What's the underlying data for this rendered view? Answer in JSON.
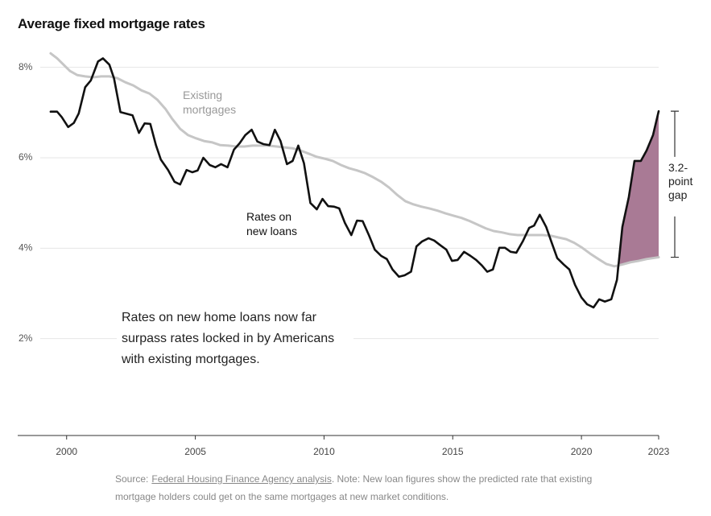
{
  "chart_data": {
    "type": "line",
    "title": "Average fixed mortgage rates",
    "xlim": [
      1998.1,
      2023
    ],
    "xticks": [
      2000,
      2005,
      2010,
      2015,
      2020,
      2023
    ],
    "ylim": [
      0,
      8.4
    ],
    "yticks": [
      {
        "value": 2,
        "label": "2%"
      },
      {
        "value": 4,
        "label": "4%"
      },
      {
        "value": 6,
        "label": "6%"
      },
      {
        "value": 8,
        "label": "8%"
      }
    ],
    "grid": true,
    "gap_fill_color": "#a97a95",
    "series": [
      {
        "name": "Existing mortgages",
        "color": "#c6c6c6",
        "x": [
          1999.38,
          1999.63,
          1999.88,
          2000.13,
          2000.41,
          2000.72,
          2001.03,
          2001.34,
          2001.66,
          2001.97,
          2002.28,
          2002.59,
          2002.91,
          2003.22,
          2003.53,
          2003.84,
          2004.09,
          2004.41,
          2004.72,
          2005.03,
          2005.34,
          2005.66,
          2005.97,
          2006.28,
          2006.59,
          2006.91,
          2007.22,
          2007.53,
          2007.84,
          2008.16,
          2008.47,
          2008.78,
          2009.09,
          2009.41,
          2009.72,
          2010.03,
          2010.34,
          2010.66,
          2010.97,
          2011.28,
          2011.59,
          2011.91,
          2012.22,
          2012.53,
          2012.84,
          2013.16,
          2013.47,
          2013.78,
          2014.09,
          2014.41,
          2014.72,
          2015.03,
          2015.34,
          2015.66,
          2015.97,
          2016.28,
          2016.59,
          2016.91,
          2017.22,
          2017.53,
          2017.84,
          2018.16,
          2018.47,
          2018.78,
          2019.09,
          2019.41,
          2019.72,
          2020.03,
          2020.34,
          2020.66,
          2020.97,
          2021.28,
          2021.59,
          2021.91,
          2022.22,
          2022.53,
          2023.0
        ],
        "values": [
          8.31,
          8.2,
          8.06,
          7.92,
          7.83,
          7.8,
          7.78,
          7.8,
          7.8,
          7.76,
          7.67,
          7.6,
          7.49,
          7.42,
          7.28,
          7.08,
          6.87,
          6.64,
          6.5,
          6.43,
          6.37,
          6.34,
          6.28,
          6.27,
          6.25,
          6.25,
          6.27,
          6.27,
          6.27,
          6.25,
          6.23,
          6.21,
          6.16,
          6.09,
          6.02,
          5.98,
          5.93,
          5.84,
          5.77,
          5.72,
          5.66,
          5.57,
          5.47,
          5.34,
          5.18,
          5.04,
          4.97,
          4.92,
          4.88,
          4.83,
          4.77,
          4.72,
          4.67,
          4.6,
          4.52,
          4.44,
          4.38,
          4.35,
          4.31,
          4.29,
          4.29,
          4.29,
          4.29,
          4.28,
          4.24,
          4.2,
          4.12,
          4.01,
          3.88,
          3.76,
          3.65,
          3.6,
          3.64,
          3.69,
          3.72,
          3.76,
          3.8
        ]
      },
      {
        "name": "Rates on new loans",
        "color": "#111111",
        "x": [
          1999.38,
          1999.63,
          1999.81,
          2000.06,
          2000.28,
          2000.47,
          2000.72,
          2000.94,
          2001.22,
          2001.41,
          2001.66,
          2001.84,
          2002.09,
          2002.56,
          2002.81,
          2003.03,
          2003.25,
          2003.47,
          2003.66,
          2003.94,
          2004.19,
          2004.41,
          2004.66,
          2004.88,
          2005.09,
          2005.31,
          2005.56,
          2005.78,
          2006.0,
          2006.25,
          2006.5,
          2006.72,
          2006.94,
          2007.19,
          2007.41,
          2007.66,
          2007.88,
          2008.09,
          2008.31,
          2008.56,
          2008.78,
          2009.0,
          2009.22,
          2009.47,
          2009.72,
          2009.94,
          2010.16,
          2010.38,
          2010.59,
          2010.81,
          2011.06,
          2011.28,
          2011.5,
          2011.75,
          2011.97,
          2012.22,
          2012.44,
          2012.66,
          2012.91,
          2013.13,
          2013.38,
          2013.59,
          2013.81,
          2014.06,
          2014.28,
          2014.53,
          2014.75,
          2014.97,
          2015.19,
          2015.44,
          2015.69,
          2015.91,
          2016.13,
          2016.34,
          2016.56,
          2016.81,
          2017.03,
          2017.25,
          2017.47,
          2017.72,
          2017.97,
          2018.16,
          2018.38,
          2018.63,
          2018.84,
          2019.06,
          2019.31,
          2019.53,
          2019.75,
          2020.0,
          2020.22,
          2020.47,
          2020.69,
          2020.91,
          2021.16,
          2021.38,
          2021.59,
          2021.84,
          2022.06,
          2022.31,
          2022.53,
          2022.78,
          2023.0
        ],
        "values": [
          7.02,
          7.02,
          6.9,
          6.68,
          6.77,
          6.98,
          7.56,
          7.71,
          8.13,
          8.2,
          8.06,
          7.76,
          7.01,
          6.94,
          6.55,
          6.76,
          6.75,
          6.28,
          5.96,
          5.73,
          5.47,
          5.41,
          5.73,
          5.68,
          5.72,
          6.0,
          5.84,
          5.79,
          5.86,
          5.79,
          6.18,
          6.32,
          6.5,
          6.62,
          6.36,
          6.3,
          6.28,
          6.62,
          6.37,
          5.86,
          5.93,
          6.27,
          5.88,
          5.0,
          4.86,
          5.09,
          4.93,
          4.92,
          4.88,
          4.56,
          4.29,
          4.61,
          4.6,
          4.28,
          3.97,
          3.83,
          3.76,
          3.53,
          3.37,
          3.4,
          3.48,
          4.04,
          4.15,
          4.22,
          4.17,
          4.06,
          3.97,
          3.72,
          3.74,
          3.92,
          3.83,
          3.74,
          3.62,
          3.48,
          3.53,
          4.01,
          4.01,
          3.92,
          3.9,
          4.15,
          4.45,
          4.5,
          4.74,
          4.47,
          4.13,
          3.78,
          3.64,
          3.53,
          3.19,
          2.91,
          2.76,
          2.69,
          2.87,
          2.82,
          2.87,
          3.3,
          4.47,
          5.13,
          5.93,
          5.93,
          6.16,
          6.5,
          7.03
        ]
      }
    ],
    "gap_label": "3.2-point gap",
    "note": "Rates on new home loans now far surpass rates locked in by Americans with existing mortgages.",
    "source": {
      "prefix": "Source:",
      "link": "Federal Housing Finance Agency analysis",
      "rest": ". Note: New loan figures show the predicted rate that existing mortgage holders could get on the same mortgages at new market conditions."
    }
  }
}
